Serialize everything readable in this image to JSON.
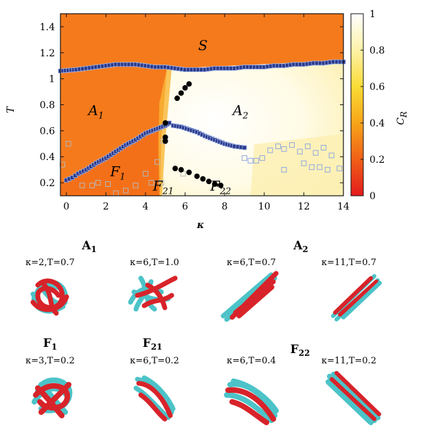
{
  "chart_data": {
    "type": "heatmap",
    "xlabel": "κ",
    "ylabel": "T",
    "colorbar_label": "C",
    "colorbar_label_sub": "R",
    "xlim": [
      -0.3,
      14
    ],
    "ylim": [
      0.1,
      1.5
    ],
    "clim": [
      0,
      1
    ],
    "x_ticks": [
      "0",
      "2",
      "4",
      "6",
      "8",
      "10",
      "12",
      "14"
    ],
    "y_ticks": [
      "0.2",
      "0.4",
      "0.6",
      "0.8",
      "1",
      "1.2",
      "1.4"
    ],
    "colorbar_ticks": [
      "0",
      "0.2",
      "0.4",
      "0.6",
      "0.8",
      "1"
    ],
    "colormap": [
      "#e41a1c",
      "#f4701a",
      "#f7a81a",
      "#fbe13a",
      "#fdf5b0",
      "#ffffff"
    ],
    "region_labels": [
      {
        "text": "S",
        "sub": "",
        "x": 6.9,
        "y": 1.22
      },
      {
        "text": "A",
        "sub": "1",
        "x": 1.5,
        "y": 0.72
      },
      {
        "text": "A",
        "sub": "2",
        "x": 8.8,
        "y": 0.72
      },
      {
        "text": "F",
        "sub": "1",
        "x": 2.6,
        "y": 0.25
      },
      {
        "text": "F",
        "sub": "21",
        "x": 4.9,
        "y": 0.14
      },
      {
        "text": "F",
        "sub": "22",
        "x": 7.8,
        "y": 0.14
      }
    ],
    "boundary_upper": [
      [
        -0.3,
        1.06
      ],
      [
        0.5,
        1.07
      ],
      [
        1,
        1.08
      ],
      [
        1.5,
        1.09
      ],
      [
        2,
        1.1
      ],
      [
        2.5,
        1.11
      ],
      [
        3,
        1.11
      ],
      [
        3.5,
        1.11
      ],
      [
        4,
        1.1
      ],
      [
        4.5,
        1.09
      ],
      [
        5,
        1.09
      ],
      [
        5.5,
        1.08
      ],
      [
        6,
        1.07
      ],
      [
        6.5,
        1.07
      ],
      [
        7,
        1.07
      ],
      [
        7.5,
        1.08
      ],
      [
        8,
        1.08
      ],
      [
        8.5,
        1.08
      ],
      [
        9,
        1.09
      ],
      [
        9.5,
        1.09
      ],
      [
        10,
        1.09
      ],
      [
        10.5,
        1.1
      ],
      [
        11,
        1.1
      ],
      [
        11.5,
        1.11
      ],
      [
        12,
        1.11
      ],
      [
        12.5,
        1.12
      ],
      [
        13,
        1.12
      ],
      [
        13.5,
        1.13
      ],
      [
        14,
        1.13
      ]
    ],
    "boundary_left": [
      [
        0,
        0.22
      ],
      [
        0.3,
        0.24
      ],
      [
        0.6,
        0.27
      ],
      [
        1,
        0.3
      ],
      [
        1.5,
        0.35
      ],
      [
        2,
        0.39
      ],
      [
        2.5,
        0.44
      ],
      [
        3,
        0.49
      ],
      [
        3.5,
        0.53
      ],
      [
        4,
        0.58
      ],
      [
        4.5,
        0.61
      ],
      [
        5,
        0.64
      ],
      [
        5.2,
        0.66
      ]
    ],
    "boundary_right": [
      [
        5.4,
        0.64
      ],
      [
        5.8,
        0.63
      ],
      [
        6.2,
        0.61
      ],
      [
        6.6,
        0.59
      ],
      [
        7,
        0.56
      ],
      [
        7.5,
        0.53
      ],
      [
        8,
        0.5
      ],
      [
        8.5,
        0.48
      ],
      [
        9,
        0.47
      ]
    ],
    "points_black": [
      [
        5.0,
        0.66
      ],
      [
        5.0,
        0.55
      ],
      [
        5.0,
        0.52
      ],
      [
        5.6,
        0.85
      ],
      [
        5.8,
        0.89
      ],
      [
        6.0,
        0.93
      ],
      [
        6.2,
        0.96
      ],
      [
        5.5,
        0.31
      ],
      [
        5.8,
        0.3
      ],
      [
        6.2,
        0.28
      ],
      [
        6.6,
        0.25
      ],
      [
        6.9,
        0.23
      ],
      [
        7.2,
        0.21
      ],
      [
        7.5,
        0.19
      ],
      [
        7.8,
        0.18
      ]
    ],
    "points_open": [
      [
        -0.2,
        0.34
      ],
      [
        0.1,
        0.5
      ],
      [
        0.8,
        0.18
      ],
      [
        1.3,
        0.18
      ],
      [
        1.6,
        0.2
      ],
      [
        2.1,
        0.19
      ],
      [
        2.5,
        0.12
      ],
      [
        3.0,
        0.14
      ],
      [
        3.5,
        0.18
      ],
      [
        4.0,
        0.27
      ],
      [
        4.3,
        0.2
      ],
      [
        4.6,
        0.36
      ],
      [
        4.8,
        0.2
      ],
      [
        4.9,
        0.52
      ],
      [
        5.9,
        0.27
      ],
      [
        9.0,
        0.39
      ],
      [
        9.3,
        0.37
      ],
      [
        9.6,
        0.37
      ],
      [
        9.9,
        0.39
      ],
      [
        10.3,
        0.45
      ],
      [
        10.7,
        0.48
      ],
      [
        11.0,
        0.46
      ],
      [
        11.4,
        0.49
      ],
      [
        11.8,
        0.44
      ],
      [
        12.2,
        0.48
      ],
      [
        12.6,
        0.43
      ],
      [
        13.0,
        0.47
      ],
      [
        13.4,
        0.41
      ],
      [
        13.8,
        0.31
      ],
      [
        12.0,
        0.35
      ],
      [
        12.4,
        0.32
      ],
      [
        13.2,
        0.3
      ],
      [
        11.0,
        0.3
      ],
      [
        12.8,
        0.32
      ]
    ]
  },
  "snapshots": {
    "row1": [
      {
        "label": "κ=2,T=0.7"
      },
      {
        "label": "κ=6,T=1.0"
      },
      {
        "label": "κ=6,T=0.7"
      },
      {
        "label": "κ=11,T=0.7"
      }
    ],
    "row2": [
      {
        "label": "κ=3,T=0.2"
      },
      {
        "label": "κ=6,T=0.2"
      },
      {
        "label": "κ=6,T=0.4"
      },
      {
        "label": "κ=11,T=0.2"
      }
    ],
    "group_titles": [
      {
        "text": "A",
        "sub": "1"
      },
      {
        "text": "A",
        "sub": "2"
      },
      {
        "text": "F",
        "sub": "1"
      },
      {
        "text": "F",
        "sub": "21"
      },
      {
        "text": "F",
        "sub": "22"
      }
    ],
    "colors": {
      "red": "#d8232a",
      "cyan": "#4cc3c8"
    }
  }
}
